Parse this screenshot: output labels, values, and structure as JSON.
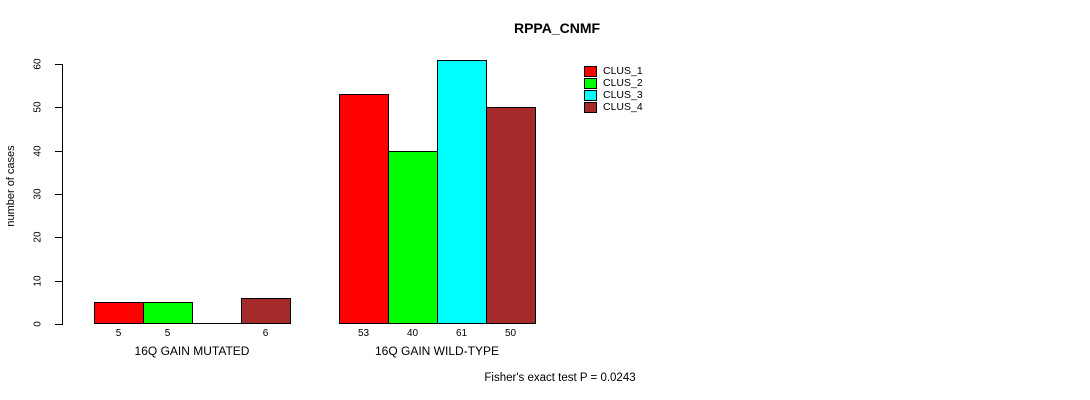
{
  "chart_data": {
    "type": "bar",
    "title": "RPPA_CNMF",
    "ylabel": "number of cases",
    "xlabel": "",
    "ylim": [
      0,
      60
    ],
    "y_ticks": [
      0,
      10,
      20,
      30,
      40,
      50,
      60
    ],
    "grid": false,
    "legend_position": "top-right",
    "legend": [
      {
        "label": "CLUS_1",
        "color": "#FF0000"
      },
      {
        "label": "CLUS_2",
        "color": "#00FF00"
      },
      {
        "label": "CLUS_3",
        "color": "#00FFFF"
      },
      {
        "label": "CLUS_4",
        "color": "#A52A2A"
      }
    ],
    "groups": [
      {
        "label": "16Q GAIN MUTATED",
        "values": [
          5,
          5,
          0,
          6
        ]
      },
      {
        "label": "16Q GAIN WILD-TYPE",
        "values": [
          53,
          40,
          61,
          50
        ]
      }
    ],
    "annotation": "Fisher's exact test P = 0.0243"
  }
}
